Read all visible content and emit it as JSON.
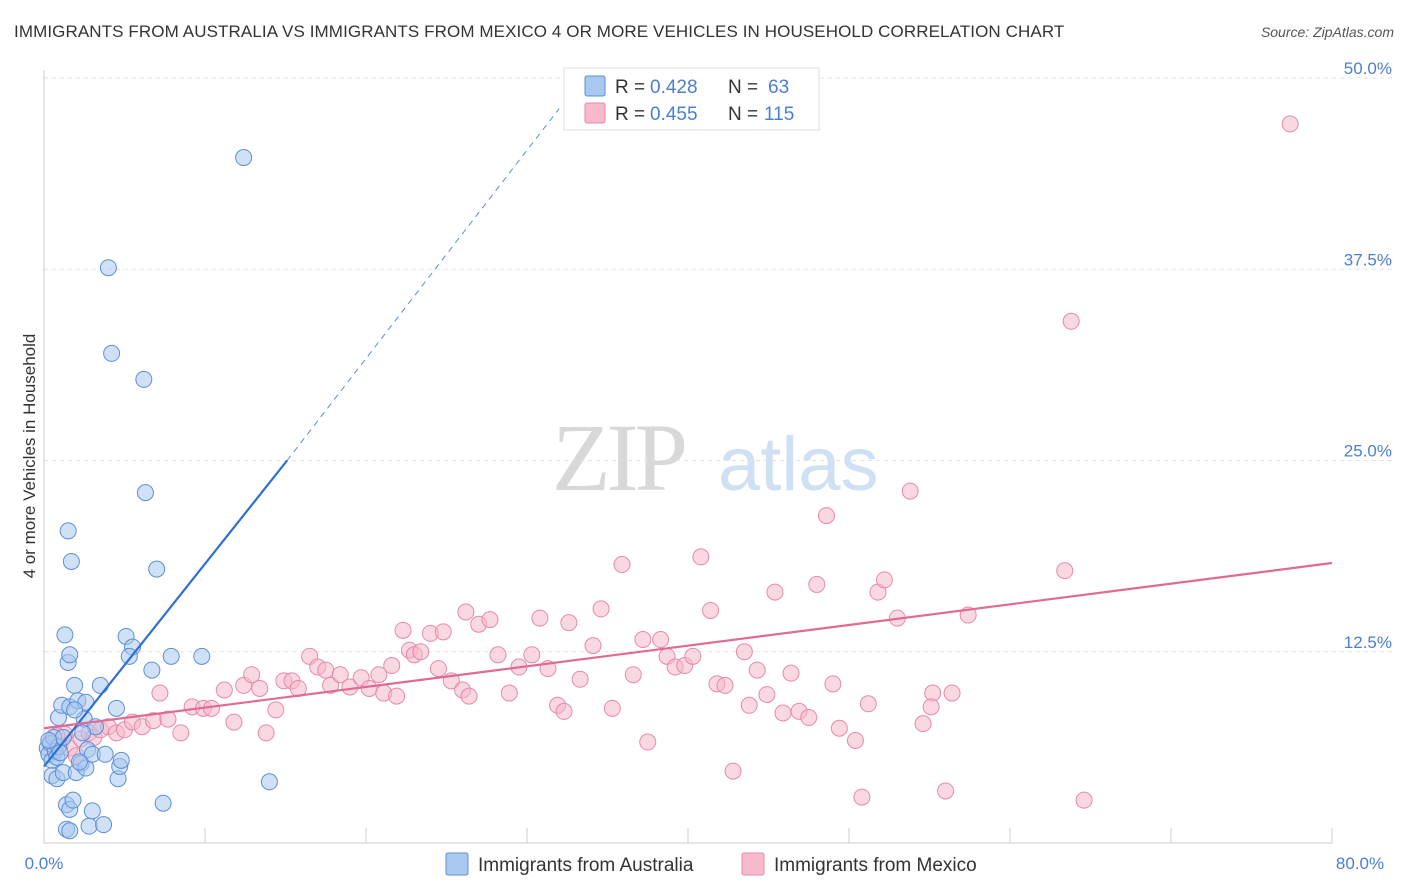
{
  "header": {
    "title": "IMMIGRANTS FROM AUSTRALIA VS IMMIGRANTS FROM MEXICO 4 OR MORE VEHICLES IN HOUSEHOLD CORRELATION CHART",
    "source": "Source: ZipAtlas.com"
  },
  "watermark": {
    "zip": "ZIP",
    "atlas": "atlas"
  },
  "stats": {
    "australia": {
      "r_label": "R =",
      "r_value": "0.428",
      "n_label": "N =",
      "n_value": "63"
    },
    "mexico": {
      "r_label": "R =",
      "r_value": "0.455",
      "n_label": "N =",
      "n_value": "115"
    }
  },
  "colors": {
    "australia_fill": "#a9c8f0",
    "australia_stroke": "#5b8fd6",
    "australia_line": "#2f6fd0",
    "mexico_fill": "#f6b8cb",
    "mexico_stroke": "#e58aa8",
    "mexico_line": "#e06a93",
    "tick_color": "#4a7fd4"
  },
  "chart_data": {
    "type": "scatter",
    "title": "IMMIGRANTS FROM AUSTRALIA VS IMMIGRANTS FROM MEXICO 4 OR MORE VEHICLES IN HOUSEHOLD CORRELATION CHART",
    "xlabel": "",
    "ylabel": "4 or more Vehicles in Household",
    "xlim": [
      0,
      80
    ],
    "ylim": [
      0,
      50
    ],
    "x_tick_labels": [
      "0.0%",
      "80.0%"
    ],
    "y_ticks": [
      12.5,
      25.0,
      37.5,
      50.0
    ],
    "y_tick_labels": [
      "12.5%",
      "25.0%",
      "37.5%",
      "50.0%"
    ],
    "grid": true,
    "legend_position": "bottom-center",
    "series": [
      {
        "name": "Immigrants from Australia",
        "points": [
          [
            0.2,
            6.2
          ],
          [
            0.3,
            5.8
          ],
          [
            0.4,
            6.5
          ],
          [
            0.5,
            5.4
          ],
          [
            0.6,
            6.9
          ],
          [
            0.7,
            6.0
          ],
          [
            0.8,
            5.6
          ],
          [
            0.5,
            4.4
          ],
          [
            0.8,
            4.2
          ],
          [
            1.2,
            4.6
          ],
          [
            0.9,
            8.2
          ],
          [
            1.1,
            9.0
          ],
          [
            1.3,
            13.6
          ],
          [
            1.5,
            11.8
          ],
          [
            1.6,
            12.3
          ],
          [
            1.6,
            8.9
          ],
          [
            1.9,
            10.3
          ],
          [
            2.1,
            9.3
          ],
          [
            2.5,
            8.1
          ],
          [
            2.7,
            6.1
          ],
          [
            2.3,
            5.2
          ],
          [
            2.0,
            4.6
          ],
          [
            2.6,
            4.9
          ],
          [
            3.2,
            7.6
          ],
          [
            3.0,
            5.8
          ],
          [
            1.5,
            20.4
          ],
          [
            1.7,
            18.4
          ],
          [
            4.0,
            37.6
          ],
          [
            4.2,
            32.0
          ],
          [
            6.2,
            30.3
          ],
          [
            12.4,
            44.8
          ],
          [
            6.3,
            22.9
          ],
          [
            7.0,
            17.9
          ],
          [
            5.1,
            13.5
          ],
          [
            5.5,
            12.8
          ],
          [
            5.3,
            12.2
          ],
          [
            6.7,
            11.3
          ],
          [
            7.9,
            12.2
          ],
          [
            9.8,
            12.2
          ],
          [
            4.5,
            8.8
          ],
          [
            3.5,
            10.3
          ],
          [
            3.8,
            5.8
          ],
          [
            4.6,
            4.2
          ],
          [
            4.7,
            5.0
          ],
          [
            1.4,
            2.5
          ],
          [
            1.6,
            2.2
          ],
          [
            1.8,
            2.8
          ],
          [
            1.4,
            0.9
          ],
          [
            1.6,
            0.8
          ],
          [
            2.8,
            1.1
          ],
          [
            3.0,
            2.1
          ],
          [
            3.7,
            1.2
          ],
          [
            7.4,
            2.6
          ],
          [
            14.0,
            4.0
          ],
          [
            2.6,
            9.2
          ],
          [
            1.9,
            8.7
          ],
          [
            0.9,
            6.3
          ],
          [
            1.2,
            6.9
          ],
          [
            2.2,
            5.3
          ],
          [
            1.0,
            5.9
          ],
          [
            0.3,
            6.7
          ],
          [
            4.8,
            5.4
          ],
          [
            2.4,
            7.2
          ]
        ]
      },
      {
        "name": "Immigrants from Mexico",
        "points": [
          [
            0.4,
            6.6
          ],
          [
            0.7,
            6.0
          ],
          [
            1.0,
            6.4
          ],
          [
            1.3,
            7.1
          ],
          [
            1.6,
            6.2
          ],
          [
            2.0,
            5.7
          ],
          [
            2.3,
            6.8
          ],
          [
            2.8,
            7.2
          ],
          [
            3.1,
            6.9
          ],
          [
            3.5,
            7.4
          ],
          [
            4.0,
            7.6
          ],
          [
            4.5,
            7.2
          ],
          [
            5.0,
            7.4
          ],
          [
            5.5,
            7.9
          ],
          [
            6.1,
            7.6
          ],
          [
            6.8,
            8.0
          ],
          [
            7.2,
            9.8
          ],
          [
            7.7,
            8.1
          ],
          [
            8.5,
            7.2
          ],
          [
            9.2,
            8.9
          ],
          [
            9.9,
            8.8
          ],
          [
            10.4,
            8.8
          ],
          [
            11.2,
            10.0
          ],
          [
            11.8,
            7.9
          ],
          [
            12.4,
            10.3
          ],
          [
            12.9,
            11.0
          ],
          [
            13.4,
            10.1
          ],
          [
            13.8,
            7.2
          ],
          [
            14.4,
            8.7
          ],
          [
            14.9,
            10.6
          ],
          [
            15.4,
            10.6
          ],
          [
            15.8,
            10.1
          ],
          [
            16.5,
            12.2
          ],
          [
            17.0,
            11.5
          ],
          [
            17.5,
            11.3
          ],
          [
            17.8,
            10.3
          ],
          [
            18.4,
            11.0
          ],
          [
            19.0,
            10.2
          ],
          [
            19.7,
            10.8
          ],
          [
            20.2,
            10.1
          ],
          [
            20.8,
            11.0
          ],
          [
            21.1,
            9.8
          ],
          [
            21.6,
            11.6
          ],
          [
            21.9,
            9.6
          ],
          [
            22.3,
            13.9
          ],
          [
            22.7,
            12.6
          ],
          [
            23.0,
            12.3
          ],
          [
            23.4,
            12.5
          ],
          [
            24.0,
            13.7
          ],
          [
            24.5,
            11.4
          ],
          [
            24.8,
            13.8
          ],
          [
            25.3,
            10.6
          ],
          [
            26.0,
            10.0
          ],
          [
            26.4,
            9.6
          ],
          [
            26.2,
            15.1
          ],
          [
            27.0,
            14.3
          ],
          [
            27.7,
            14.6
          ],
          [
            28.2,
            12.3
          ],
          [
            28.9,
            9.8
          ],
          [
            29.5,
            11.5
          ],
          [
            30.3,
            12.3
          ],
          [
            30.8,
            14.7
          ],
          [
            31.3,
            11.4
          ],
          [
            31.9,
            9.0
          ],
          [
            32.3,
            8.6
          ],
          [
            32.6,
            14.4
          ],
          [
            33.3,
            10.7
          ],
          [
            34.1,
            12.9
          ],
          [
            34.6,
            15.3
          ],
          [
            35.3,
            8.8
          ],
          [
            35.9,
            18.2
          ],
          [
            36.6,
            11.0
          ],
          [
            37.2,
            13.3
          ],
          [
            37.5,
            6.6
          ],
          [
            38.3,
            13.3
          ],
          [
            38.7,
            12.2
          ],
          [
            39.2,
            11.5
          ],
          [
            39.8,
            11.6
          ],
          [
            40.3,
            12.2
          ],
          [
            40.8,
            18.7
          ],
          [
            41.4,
            15.2
          ],
          [
            41.8,
            10.4
          ],
          [
            42.3,
            10.3
          ],
          [
            42.8,
            4.7
          ],
          [
            43.5,
            12.5
          ],
          [
            43.8,
            9.0
          ],
          [
            44.3,
            11.3
          ],
          [
            44.9,
            9.7
          ],
          [
            45.4,
            16.4
          ],
          [
            45.9,
            8.5
          ],
          [
            46.4,
            11.1
          ],
          [
            46.9,
            8.6
          ],
          [
            47.5,
            8.2
          ],
          [
            48.0,
            16.9
          ],
          [
            48.6,
            21.4
          ],
          [
            49.0,
            10.4
          ],
          [
            49.4,
            7.5
          ],
          [
            50.4,
            6.7
          ],
          [
            50.8,
            3.0
          ],
          [
            51.2,
            9.1
          ],
          [
            51.8,
            16.4
          ],
          [
            52.2,
            17.2
          ],
          [
            53.0,
            14.7
          ],
          [
            53.8,
            23.0
          ],
          [
            54.6,
            7.8
          ],
          [
            55.2,
            9.8
          ],
          [
            55.1,
            8.9
          ],
          [
            56.4,
            9.8
          ],
          [
            56.0,
            3.4
          ],
          [
            57.4,
            14.9
          ],
          [
            63.4,
            17.8
          ],
          [
            63.8,
            34.1
          ],
          [
            64.6,
            2.8
          ],
          [
            77.4,
            47.0
          ],
          [
            0.8,
            7.0
          ]
        ]
      }
    ],
    "trendlines": [
      {
        "series": "Immigrants from Australia",
        "solid_x": [
          0.0,
          15.1
        ],
        "solid_y": [
          5.0,
          25.0
        ],
        "dashed_x": [
          15.1,
          32.0
        ],
        "dashed_y": [
          25.0,
          48.0
        ]
      },
      {
        "series": "Immigrants from Mexico",
        "x": [
          0.0,
          80.0
        ],
        "y": [
          7.5,
          18.3
        ]
      }
    ]
  },
  "legend": {
    "australia_label": "Immigrants from Australia",
    "mexico_label": "Immigrants from Mexico"
  }
}
